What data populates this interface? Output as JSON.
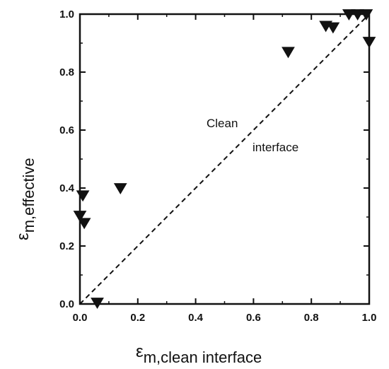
{
  "chart_data": {
    "type": "scatter",
    "xlabel_symbol": "ε",
    "xlabel_sub": "m,clean interface",
    "ylabel_symbol": "ε",
    "ylabel_sub": "m,effective",
    "xlim": [
      0.0,
      1.0
    ],
    "ylim": [
      0.0,
      1.0
    ],
    "xticks": [
      "0.0",
      "0.2",
      "0.4",
      "0.6",
      "0.8",
      "1.0"
    ],
    "yticks": [
      "0.0",
      "0.2",
      "0.4",
      "0.6",
      "0.8",
      "1.0"
    ],
    "grid": false,
    "marker": "inverted-triangle",
    "series": [
      {
        "x": [
          0.01,
          0.0,
          0.015,
          0.06,
          0.14,
          0.72,
          0.85,
          0.875,
          0.93,
          0.96,
          0.99,
          1.0
        ],
        "y": [
          0.375,
          0.305,
          0.28,
          0.005,
          0.4,
          0.87,
          0.96,
          0.955,
          1.0,
          1.0,
          1.0,
          0.905
        ]
      }
    ],
    "reference_line": {
      "x": [
        0.0,
        1.0
      ],
      "y": [
        0.0,
        1.0
      ],
      "style": "dashed"
    },
    "annotation_line1": "Clean",
    "annotation_line2": "interface"
  }
}
